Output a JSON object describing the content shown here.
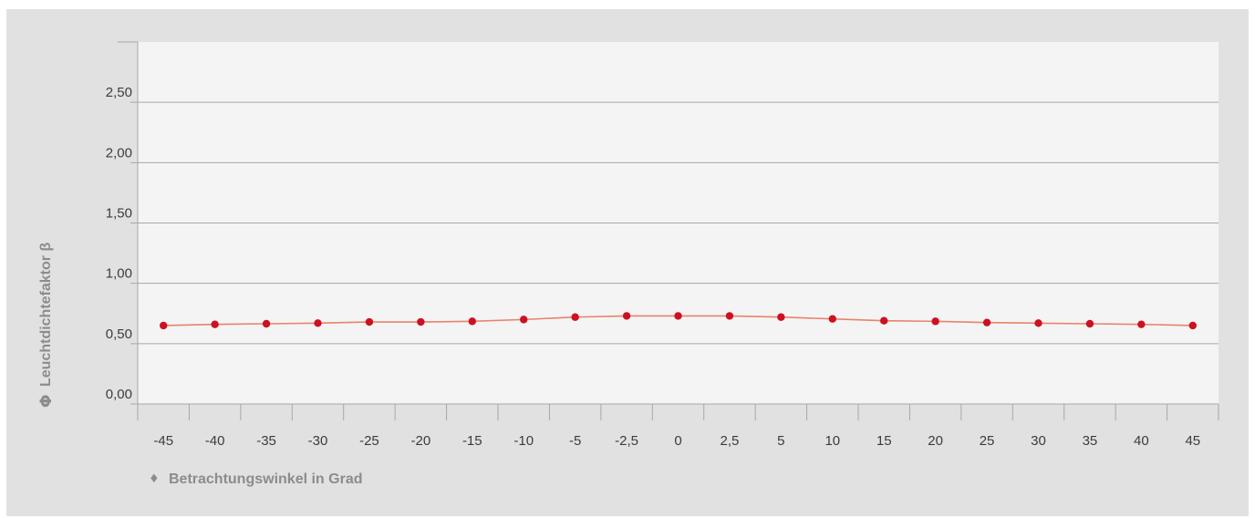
{
  "chart_data": {
    "type": "line",
    "xlabel": "Betrachtungswinkel in Grad",
    "xlabel_marker": "♦",
    "ylabel": "Leuchtdichtefaktor β",
    "ylabel_marker": "Φ",
    "categories": [
      "-45",
      "-40",
      "-35",
      "-30",
      "-25",
      "-20",
      "-15",
      "-10",
      "-5",
      "-2,5",
      "0",
      "2,5",
      "5",
      "10",
      "15",
      "20",
      "25",
      "30",
      "35",
      "40",
      "45"
    ],
    "y_ticks": [
      "0,00",
      "0,50",
      "1,00",
      "1,50",
      "2,00",
      "2,50"
    ],
    "ylim": [
      0,
      3.0
    ],
    "grid": true,
    "series": [
      {
        "values": [
          0.65,
          0.66,
          0.665,
          0.67,
          0.68,
          0.68,
          0.685,
          0.7,
          0.72,
          0.73,
          0.73,
          0.73,
          0.72,
          0.705,
          0.69,
          0.685,
          0.675,
          0.67,
          0.665,
          0.66,
          0.65
        ],
        "line_color": "#e8836a",
        "marker_color": "#cc1121"
      }
    ],
    "background_color": "#e1e1e1",
    "plot_background_color": "#f4f4f4"
  }
}
